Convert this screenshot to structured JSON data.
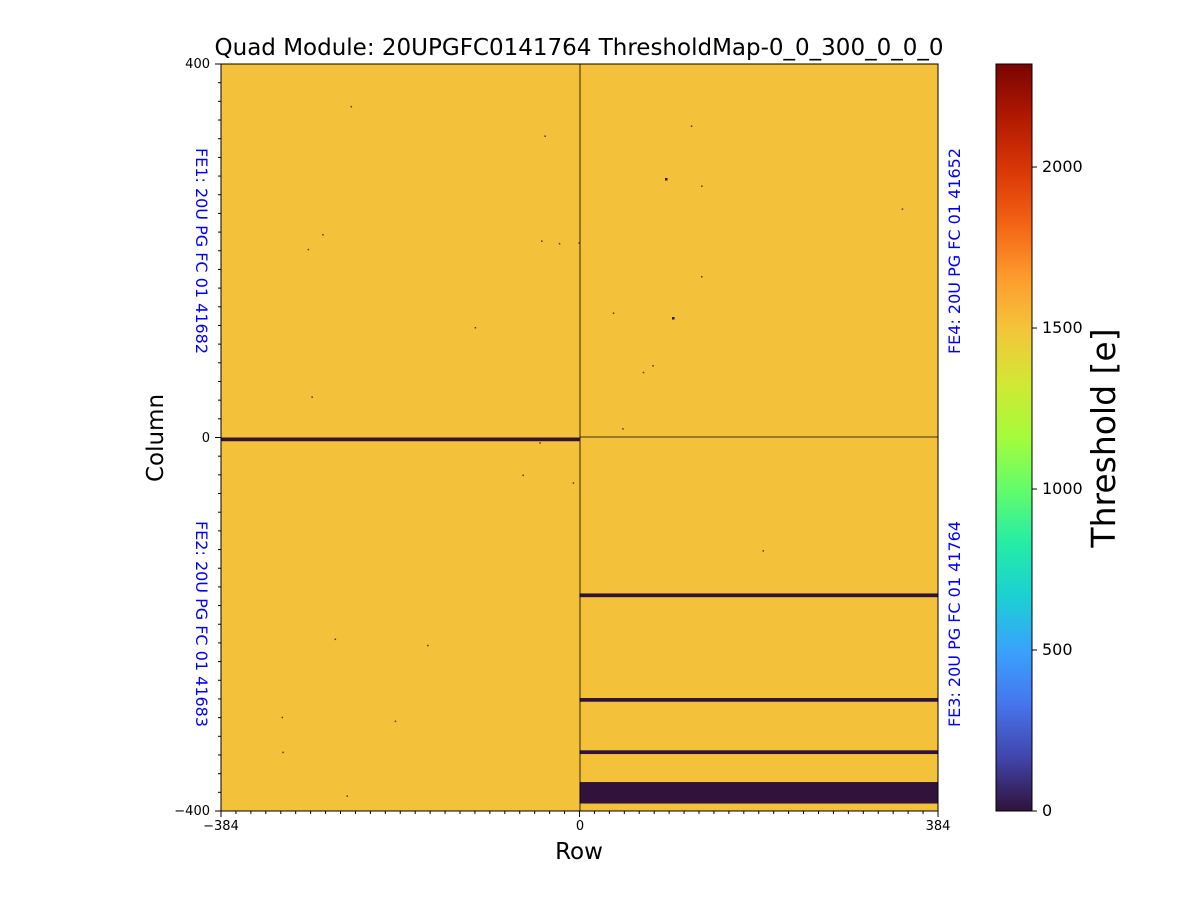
{
  "chart_data": {
    "type": "heatmap",
    "title": "Quad Module: 20UPGFC0141764 ThresholdMap-0_0_300_0_0_0",
    "xlabel": "Row",
    "ylabel": "Column",
    "xlim": [
      -384,
      384
    ],
    "ylim": [
      -400,
      400
    ],
    "x_ticks": [
      "−384",
      "0",
      "384"
    ],
    "y_ticks": [
      "400",
      "0",
      "−400"
    ],
    "colorbar": {
      "label": "Threshold [e]",
      "range": [
        0,
        2320
      ],
      "ticks": [
        "0",
        "500",
        "1000",
        "1500",
        "2000"
      ],
      "tick_values": [
        0,
        500,
        1000,
        1500,
        2000
      ],
      "colormap": "turbo"
    },
    "typical_value": 1520,
    "chip_labels": [
      {
        "name": "FE1",
        "text": "FE1: 20U PG FC 01 41682",
        "quadrant": "top-left"
      },
      {
        "name": "FE4",
        "text": "FE4: 20U PG FC 01 41652",
        "quadrant": "top-right"
      },
      {
        "name": "FE2",
        "text": "FE2: 20U PG FC 01 41683",
        "quadrant": "bottom-left"
      },
      {
        "name": "FE3",
        "text": "FE3: 20U PG FC 01 41764",
        "quadrant": "bottom-right"
      }
    ],
    "zero_value_bands": [
      {
        "x_range": [
          -384,
          0
        ],
        "y_range": [
          -4,
          0
        ]
      },
      {
        "x_range": [
          0,
          384
        ],
        "y_range": [
          -171,
          -167
        ]
      },
      {
        "x_range": [
          0,
          384
        ],
        "y_range": [
          -283,
          -279
        ]
      },
      {
        "x_range": [
          0,
          384
        ],
        "y_range": [
          -339,
          -335
        ]
      },
      {
        "x_range": [
          0,
          384
        ],
        "y_range": [
          -392,
          -369
        ]
      }
    ],
    "label_color": "#0000ff",
    "background_value_color": "#f4c23a",
    "dead_color": "#30123b"
  }
}
